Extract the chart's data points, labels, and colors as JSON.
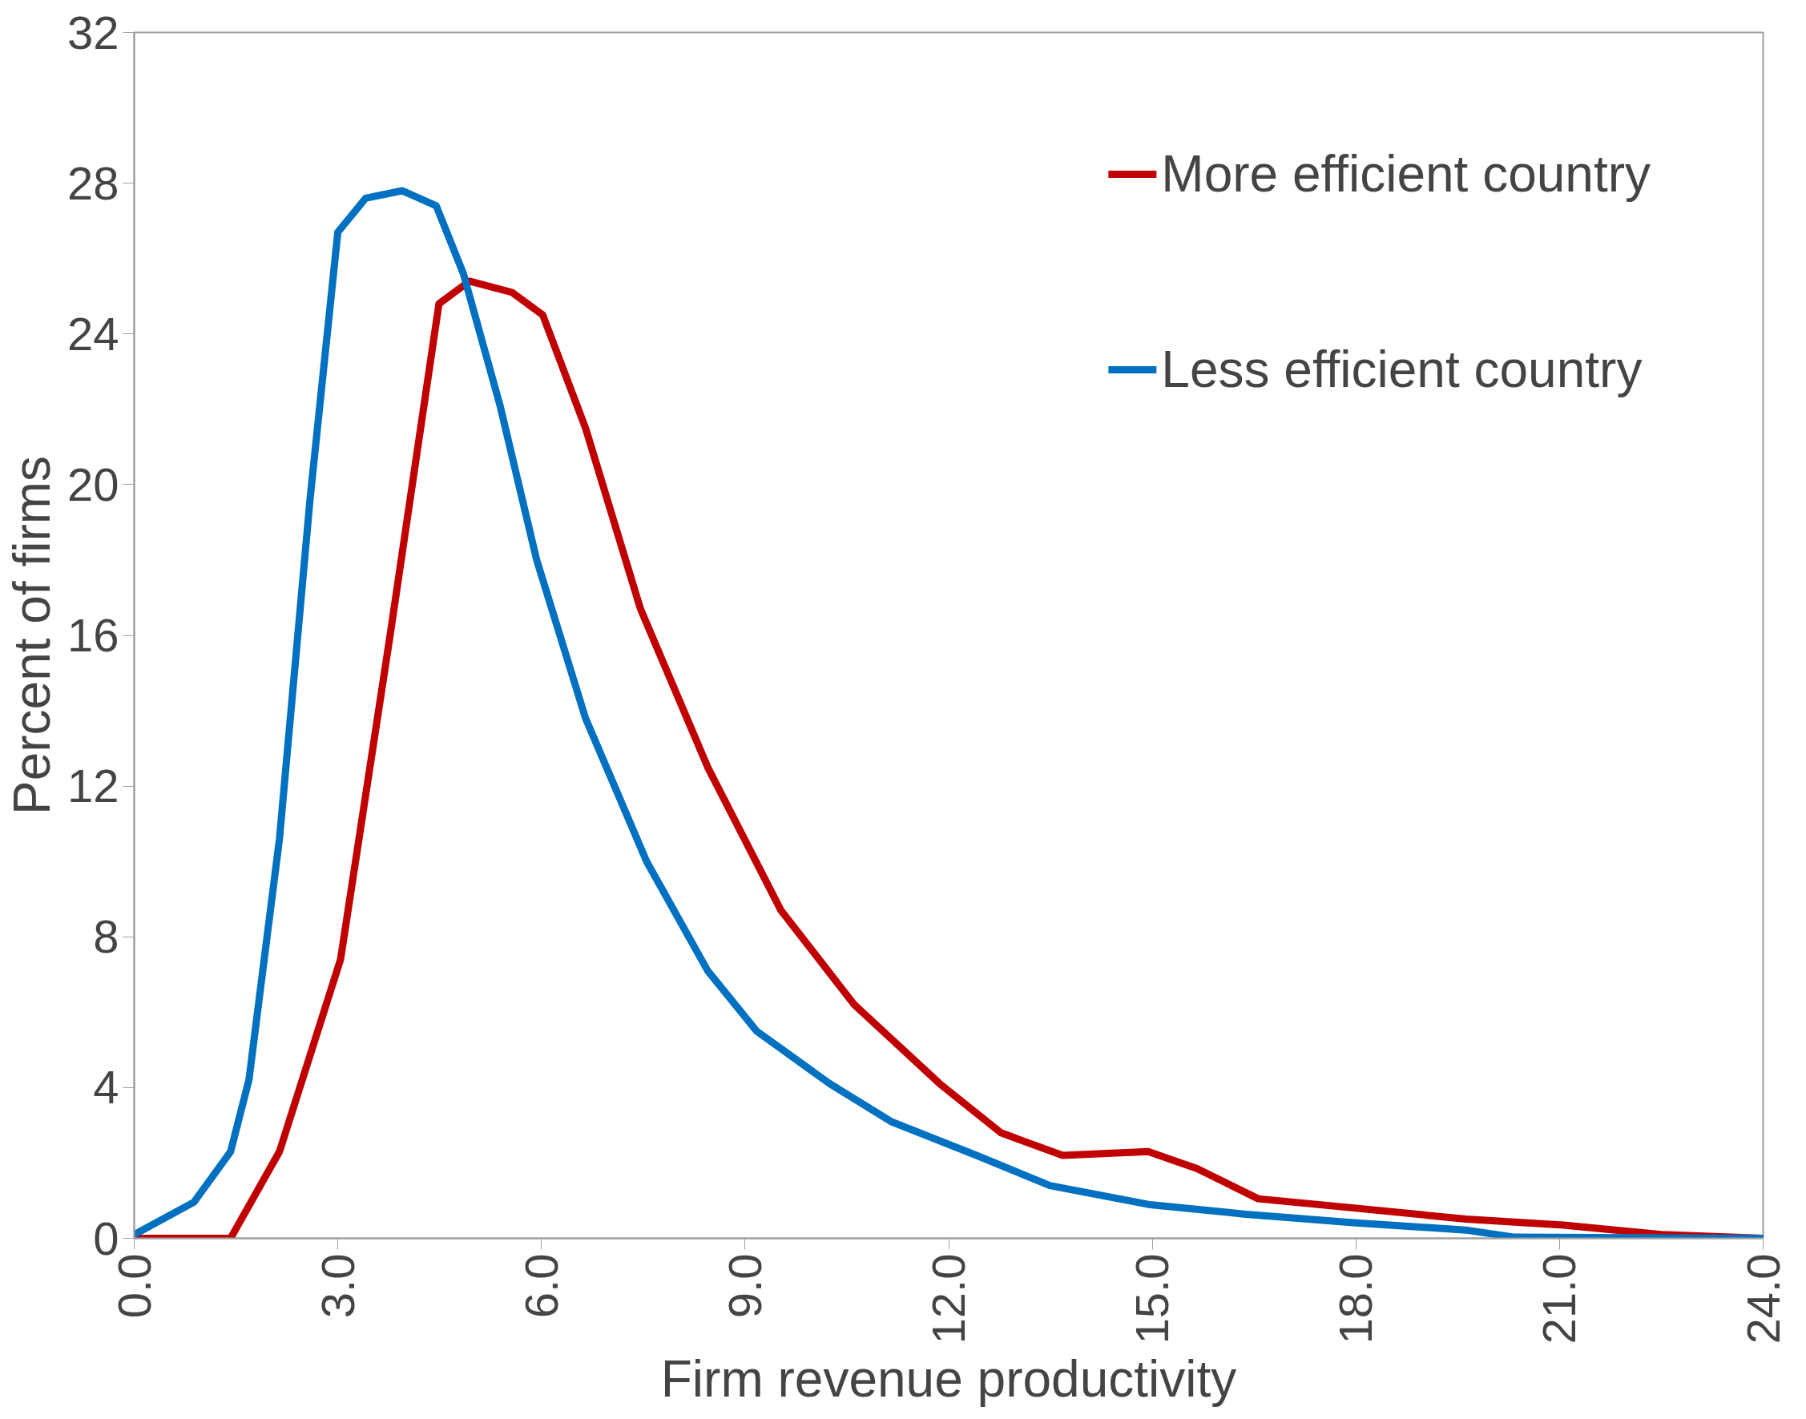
{
  "chart_data": {
    "type": "line",
    "xlabel": "Firm revenue productivity",
    "ylabel": "Percent of firms",
    "xlim": [
      0,
      24
    ],
    "ylim": [
      0,
      32
    ],
    "xticks": [
      {
        "value": 0,
        "label": "0.0"
      },
      {
        "value": 3,
        "label": "3.0"
      },
      {
        "value": 6,
        "label": "6.0"
      },
      {
        "value": 9,
        "label": "9.0"
      },
      {
        "value": 12,
        "label": "12.0"
      },
      {
        "value": 15,
        "label": "15.0"
      },
      {
        "value": 18,
        "label": "18.0"
      },
      {
        "value": 21,
        "label": "21.0"
      },
      {
        "value": 24,
        "label": "24.0"
      }
    ],
    "yticks": [
      0,
      4,
      8,
      12,
      16,
      20,
      24,
      28,
      32
    ],
    "grid": false,
    "legend": "top right",
    "marker": "none",
    "line_style": "solid",
    "series": [
      {
        "name": "More efficient country",
        "color": "#c00000",
        "x": [
          0,
          1.42,
          2.14,
          3.04,
          3.77,
          4.49,
          4.94,
          5.57,
          6.02,
          6.65,
          7.46,
          8.45,
          9.53,
          10.61,
          11.87,
          12.77,
          13.68,
          14.94,
          15.66,
          16.56,
          18.0,
          19.62,
          21.06,
          22.5,
          24
        ],
        "values": [
          0,
          0,
          2.3,
          7.4,
          16.0,
          24.8,
          25.4,
          25.1,
          24.5,
          21.5,
          16.7,
          12.5,
          8.7,
          6.2,
          4.1,
          2.8,
          2.2,
          2.3,
          1.85,
          1.05,
          0.8,
          0.51,
          0.35,
          0.1,
          0
        ]
      },
      {
        "name": "Less efficient country",
        "color": "#0070c0",
        "x": [
          0,
          0.88,
          1.42,
          1.69,
          2.14,
          2.59,
          3.0,
          3.41,
          3.95,
          4.45,
          4.85,
          5.39,
          5.93,
          6.65,
          7.55,
          8.45,
          9.17,
          10.25,
          11.15,
          12.41,
          13.49,
          14.94,
          16.38,
          18.0,
          19.62,
          20.34,
          24
        ],
        "values": [
          0.1,
          0.96,
          2.3,
          4.2,
          10.6,
          19.6,
          26.7,
          27.6,
          27.8,
          27.4,
          25.6,
          22.1,
          18.0,
          13.8,
          10.0,
          7.1,
          5.5,
          4.1,
          3.1,
          2.2,
          1.4,
          0.9,
          0.64,
          0.41,
          0.22,
          0.03,
          0
        ]
      }
    ]
  }
}
